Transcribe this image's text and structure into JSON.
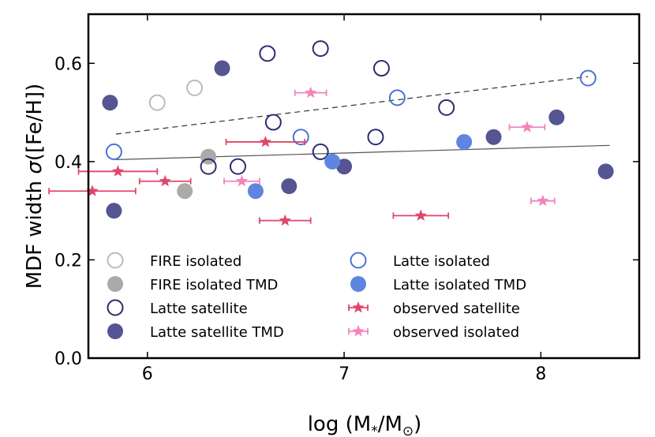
{
  "chart_data": {
    "type": "scatter",
    "xlabel": "log (M",
    "xlabel_sub1": "*",
    "xlabel_mid": "/M",
    "xlabel_sub2": "⊙",
    "xlabel_end": ")",
    "ylabel": "MDF width ",
    "ylabel_sigma": "σ",
    "ylabel_end": "([Fe/H])",
    "xlim": [
      5.7,
      8.5
    ],
    "ylim": [
      0.0,
      0.7
    ],
    "x_ticks": [
      6,
      7,
      8
    ],
    "x_tick_labels": [
      "6",
      "7",
      "8"
    ],
    "y_ticks": [
      0.0,
      0.2,
      0.4,
      0.6
    ],
    "y_tick_labels": [
      "0.0",
      "0.2",
      "0.4",
      "0.6"
    ],
    "grid": false,
    "legend_position": "bottom-left",
    "series": [
      {
        "name": "FIRE isolated",
        "key": "fire_iso",
        "marker": "open-circle",
        "color": "#bbbbbb",
        "points": [
          [
            6.05,
            0.52
          ],
          [
            6.24,
            0.55
          ]
        ]
      },
      {
        "name": "FIRE isolated TMD",
        "key": "fire_iso_tmd",
        "marker": "filled-circle",
        "color": "#aaaaaa",
        "points": [
          [
            6.19,
            0.34
          ],
          [
            6.31,
            0.41
          ]
        ]
      },
      {
        "name": "Latte satellite",
        "key": "latte_sat",
        "marker": "open-circle",
        "color": "#2b2c6e",
        "points": [
          [
            6.31,
            0.39
          ],
          [
            6.46,
            0.39
          ],
          [
            6.61,
            0.62
          ],
          [
            6.64,
            0.48
          ],
          [
            6.88,
            0.63
          ],
          [
            6.88,
            0.42
          ],
          [
            7.16,
            0.45
          ],
          [
            7.19,
            0.59
          ],
          [
            7.52,
            0.51
          ]
        ]
      },
      {
        "name": "Latte satellite TMD",
        "key": "latte_sat_tmd",
        "marker": "filled-circle",
        "color": "#555593",
        "points": [
          [
            5.81,
            0.52
          ],
          [
            5.83,
            0.3
          ],
          [
            6.38,
            0.59
          ],
          [
            6.72,
            0.35
          ],
          [
            7.0,
            0.39
          ],
          [
            7.76,
            0.45
          ],
          [
            8.08,
            0.49
          ],
          [
            8.33,
            0.38
          ]
        ]
      },
      {
        "name": "Latte isolated",
        "key": "latte_iso",
        "marker": "open-circle",
        "color": "#4a72d8",
        "points": [
          [
            5.83,
            0.42
          ],
          [
            6.78,
            0.45
          ],
          [
            7.27,
            0.53
          ],
          [
            8.24,
            0.57
          ]
        ]
      },
      {
        "name": "Latte isolated TMD",
        "key": "latte_iso_tmd",
        "marker": "filled-circle",
        "color": "#5f85e0",
        "points": [
          [
            6.55,
            0.34
          ],
          [
            6.94,
            0.4
          ],
          [
            7.61,
            0.44
          ]
        ]
      },
      {
        "name": "observed satellite",
        "key": "obs_sat",
        "marker": "star",
        "color": "#e0466a",
        "points": [
          {
            "x": 5.72,
            "y": 0.34,
            "xerr": 0.22
          },
          {
            "x": 5.85,
            "y": 0.38,
            "xerr": 0.2
          },
          {
            "x": 6.09,
            "y": 0.36,
            "xerr": 0.13
          },
          {
            "x": 6.6,
            "y": 0.44,
            "xerr": 0.2
          },
          {
            "x": 6.7,
            "y": 0.28,
            "xerr": 0.13
          },
          {
            "x": 7.39,
            "y": 0.29,
            "xerr": 0.14
          }
        ]
      },
      {
        "name": "observed isolated",
        "key": "obs_iso",
        "marker": "star",
        "color": "#f283bd",
        "points": [
          {
            "x": 6.48,
            "y": 0.36,
            "xerr": 0.09
          },
          {
            "x": 6.83,
            "y": 0.54,
            "xerr": 0.08
          },
          {
            "x": 7.93,
            "y": 0.47,
            "xerr": 0.09
          },
          {
            "x": 8.01,
            "y": 0.32,
            "xerr": 0.06
          }
        ]
      }
    ],
    "trend_lines": [
      {
        "name": "fit-dashed",
        "style": "dashed",
        "color": "#333333",
        "x": [
          5.84,
          8.24
        ],
        "y": [
          0.456,
          0.573
        ]
      },
      {
        "name": "fit-solid",
        "style": "solid",
        "color": "#555555",
        "x": [
          5.84,
          8.35
        ],
        "y": [
          0.404,
          0.433
        ]
      }
    ],
    "legend_order": [
      "fire_iso",
      "latte_iso",
      "fire_iso_tmd",
      "latte_iso_tmd",
      "latte_sat",
      "obs_sat",
      "latte_sat_tmd",
      "obs_iso"
    ]
  }
}
